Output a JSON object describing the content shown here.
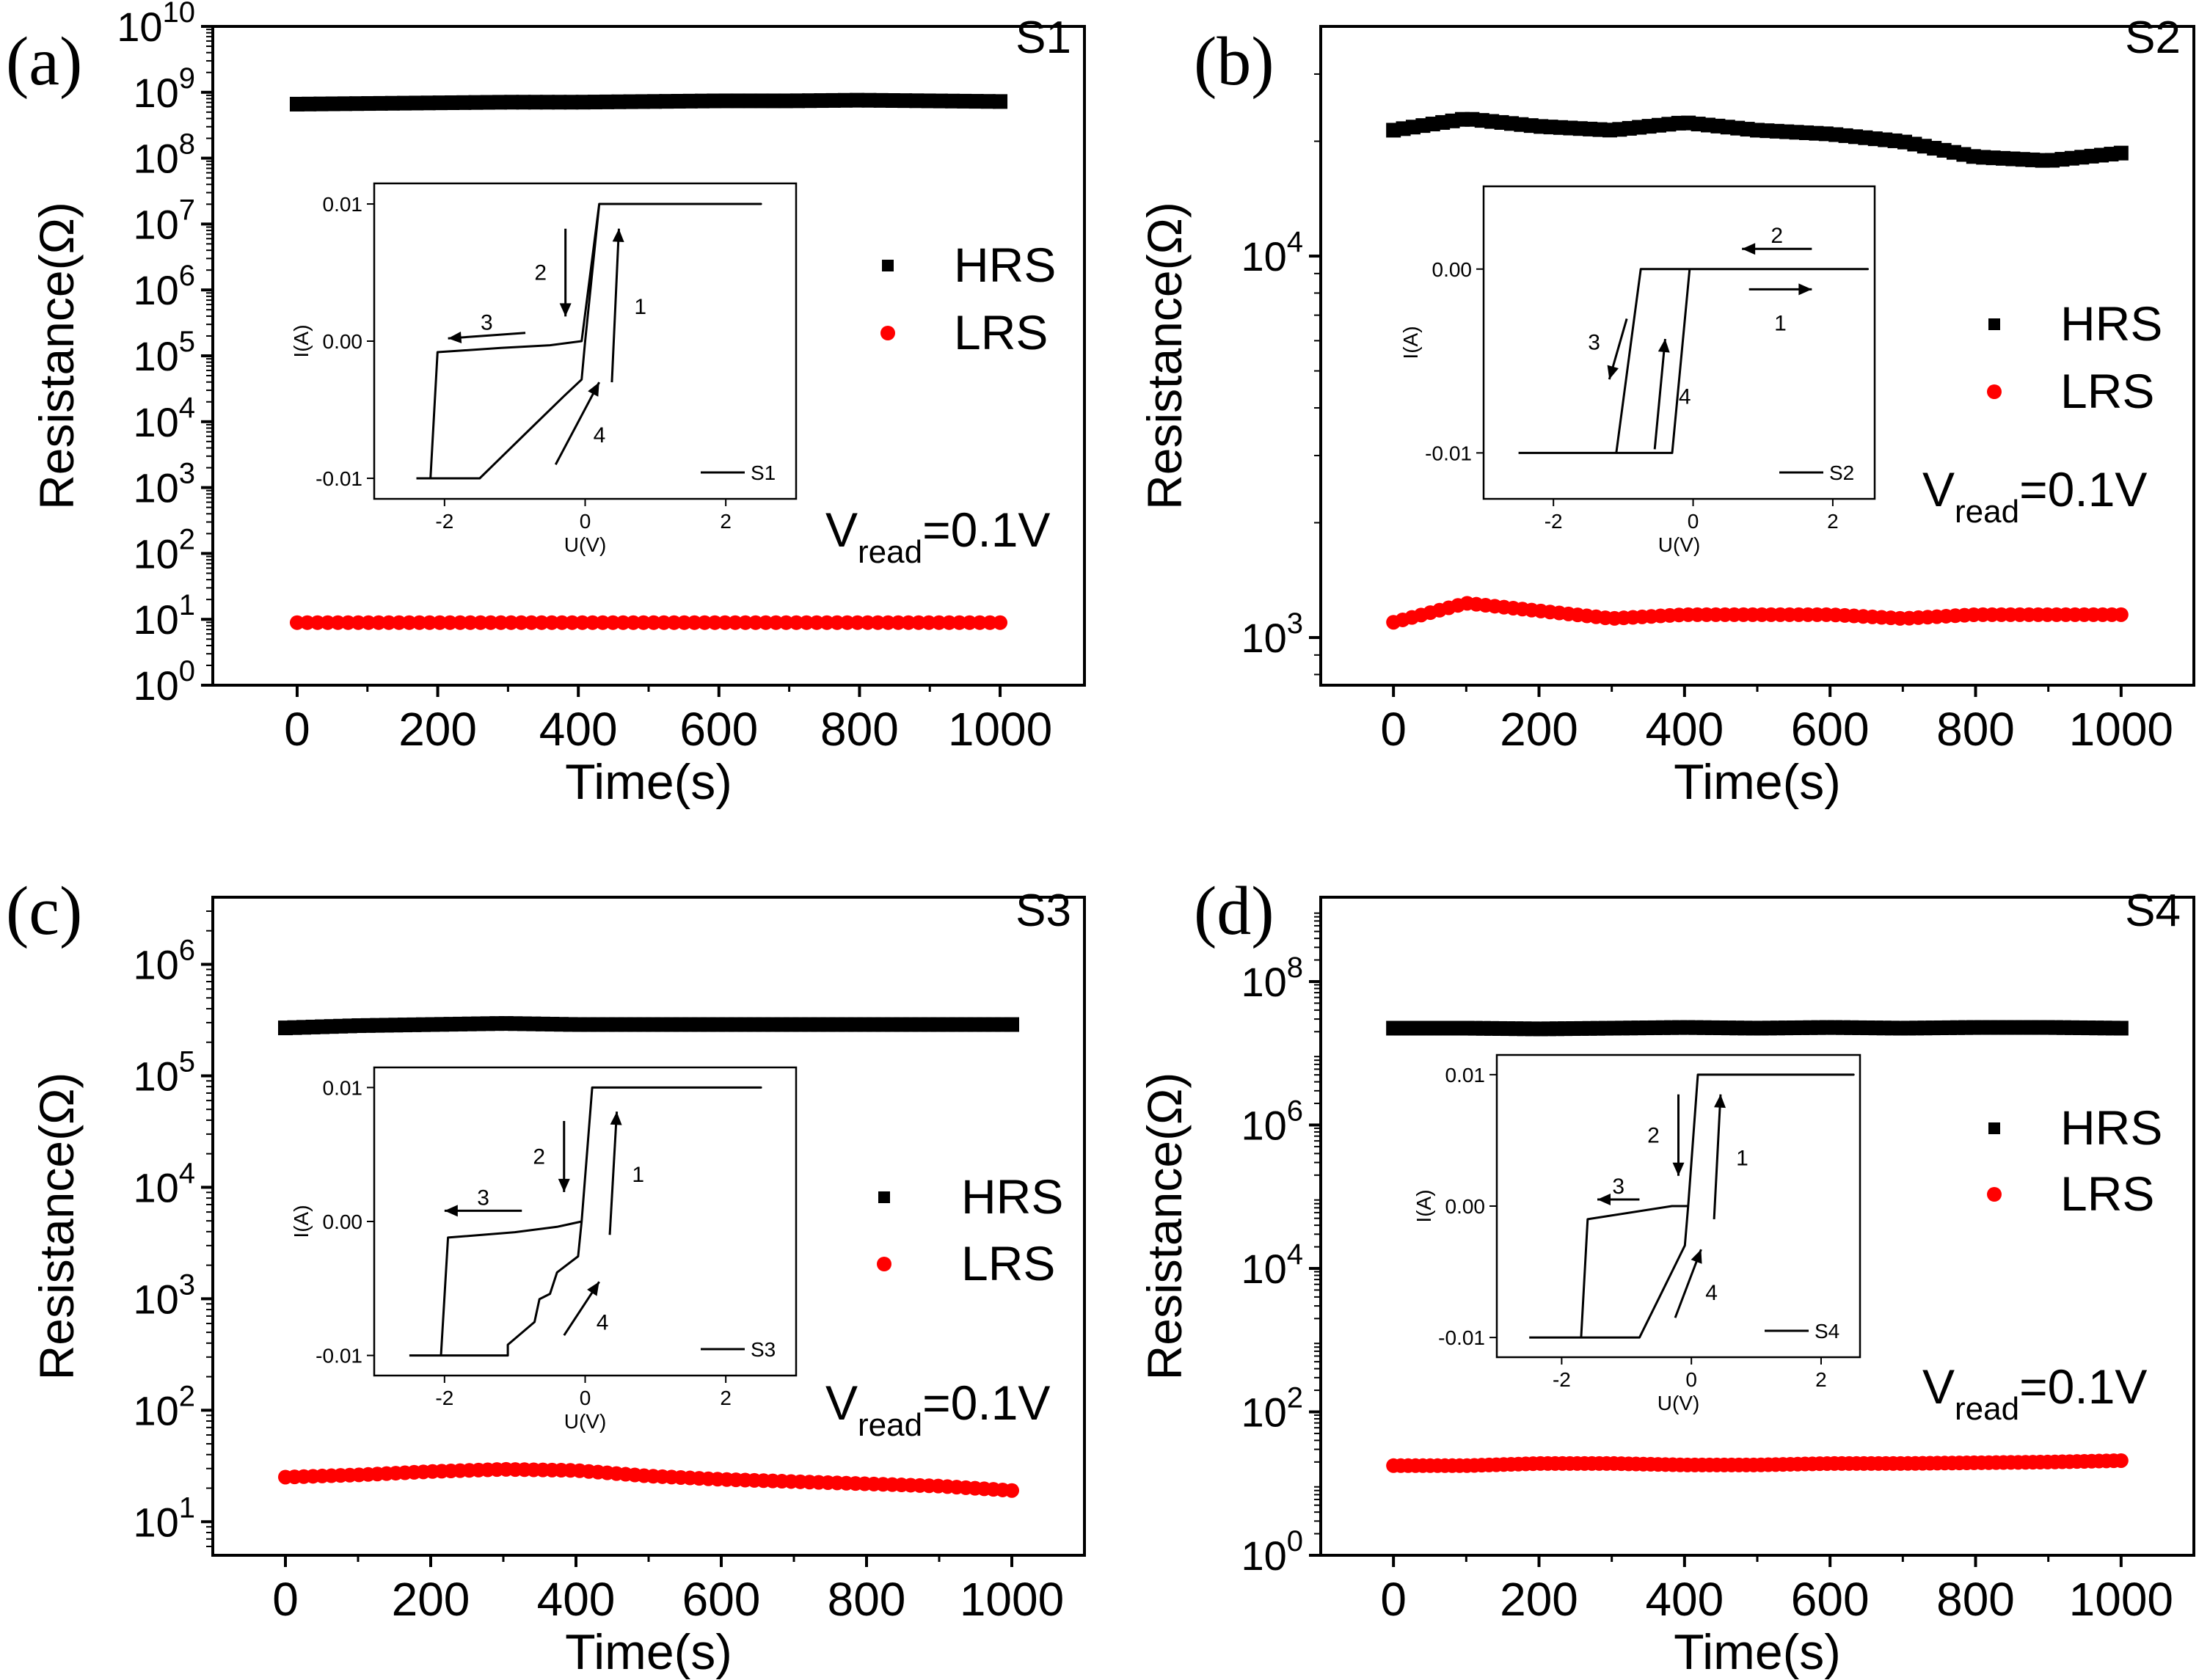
{
  "figure": {
    "xlabel": "Time(s)",
    "ylabel": "Resistance(Ω)",
    "vread": {
      "prefix": "V",
      "sub": "read",
      "suffix": "=0.1V"
    },
    "inset_xlabel": "U(V)",
    "inset_ylabel": "I(A)"
  },
  "chart_data": [
    {
      "type": "scatter",
      "panel": "(a)",
      "sample": "S1",
      "title": "",
      "xlabel": "Time(s)",
      "ylabel": "Resistance(Ω)",
      "xlim": [
        -120,
        1120
      ],
      "yscale": "log",
      "ylim": [
        1,
        10000000000
      ],
      "xticks": [
        0,
        200,
        400,
        600,
        800,
        1000
      ],
      "ytick_exponents": [
        0,
        1,
        2,
        3,
        4,
        5,
        6,
        7,
        8,
        9,
        10
      ],
      "legend_position": "right",
      "annotation": "V_read=0.1V",
      "series": [
        {
          "name": "HRS",
          "marker": "square",
          "color": "#000000",
          "t_start": 0,
          "t_end": 1000,
          "count": 60,
          "log_values": [
            8.82,
            8.83,
            8.84,
            8.85,
            8.85,
            8.86,
            8.87,
            8.87,
            8.88,
            8.87,
            8.86
          ]
        },
        {
          "name": "LRS",
          "marker": "circle",
          "color": "#ff0000",
          "t_start": 0,
          "t_end": 1000,
          "count": 70,
          "log_values": [
            0.95,
            0.95,
            0.95,
            0.95,
            0.95,
            0.95,
            0.95,
            0.95,
            0.95,
            0.95,
            0.95
          ]
        }
      ],
      "inset": {
        "type": "line",
        "legend": "S1",
        "xlabel": "U(V)",
        "ylabel": "I(A)",
        "xlim": [
          -3,
          3
        ],
        "ylim": [
          -0.0115,
          0.0115
        ],
        "xticks": [
          -2,
          0,
          2
        ],
        "yticks": [
          -0.01,
          0.0,
          0.01
        ],
        "ytick_labels": [
          "-0.01",
          "0.00",
          "0.01"
        ],
        "path": [
          [
            -2.2,
            -0.01
          ],
          [
            -2.1,
            -0.0008
          ],
          [
            -1.2,
            -0.0005
          ],
          [
            -0.5,
            -0.0003
          ],
          [
            -0.05,
            0.0
          ],
          [
            0.2,
            0.01
          ],
          [
            2.5,
            0.01
          ],
          [
            0.2,
            0.01
          ],
          [
            0.0,
            0.0
          ],
          [
            -0.05,
            -0.0028
          ],
          [
            -0.3,
            -0.004
          ],
          [
            -0.8,
            -0.0065
          ],
          [
            -1.5,
            -0.01
          ],
          [
            -2.4,
            -0.01
          ]
        ],
        "arrows": [
          {
            "label": "1",
            "from": [
              0.38,
              -0.003
            ],
            "to": [
              0.48,
              0.0082
            ]
          },
          {
            "label": "2",
            "from": [
              -0.28,
              0.0082
            ],
            "to": [
              -0.28,
              0.0018
            ]
          },
          {
            "label": "3",
            "from": [
              -0.85,
              0.0006
            ],
            "to": [
              -1.95,
              0.0002
            ]
          },
          {
            "label": "4",
            "from": [
              -0.42,
              -0.009
            ],
            "to": [
              0.2,
              -0.003
            ]
          }
        ]
      }
    },
    {
      "type": "scatter",
      "panel": "(b)",
      "sample": "S2",
      "title": "",
      "xlabel": "Time(s)",
      "ylabel": "Resistance(Ω)",
      "xlim": [
        -100,
        1100
      ],
      "yscale": "log",
      "ylim": [
        750,
        40000
      ],
      "xticks": [
        0,
        200,
        400,
        600,
        800,
        1000
      ],
      "ytick_exponents": [
        3,
        4
      ],
      "legend_position": "right",
      "annotation": "V_read=0.1V",
      "series": [
        {
          "name": "HRS",
          "marker": "square",
          "color": "#000000",
          "t_start": 0,
          "t_end": 1000,
          "count": 75,
          "log_values": [
            4.33,
            4.36,
            4.34,
            4.33,
            4.35,
            4.33,
            4.32,
            4.3,
            4.26,
            4.25,
            4.27
          ]
        },
        {
          "name": "LRS",
          "marker": "circle",
          "color": "#ff0000",
          "t_start": 0,
          "t_end": 1000,
          "count": 80,
          "log_values": [
            3.04,
            3.09,
            3.07,
            3.05,
            3.06,
            3.06,
            3.06,
            3.05,
            3.06,
            3.06,
            3.06
          ]
        }
      ],
      "inset": {
        "type": "line",
        "legend": "S2",
        "xlabel": "U(V)",
        "ylabel": "I(A)",
        "xlim": [
          -3,
          2.6
        ],
        "ylim": [
          -0.0125,
          0.0045
        ],
        "xticks": [
          -2,
          0,
          2
        ],
        "yticks": [
          -0.01,
          0.0
        ],
        "ytick_labels": [
          "-0.01",
          "0.00"
        ],
        "path": [
          [
            -2.5,
            -0.01
          ],
          [
            -1.1,
            -0.01
          ],
          [
            -0.75,
            0.0
          ],
          [
            -0.45,
            0.0
          ],
          [
            2.5,
            0.0
          ],
          [
            -0.05,
            0.0
          ],
          [
            -0.3,
            -0.01
          ],
          [
            -1.1,
            -0.01
          ]
        ],
        "arrows": [
          {
            "label": "1",
            "from": [
              0.8,
              -0.0011
            ],
            "to": [
              1.7,
              -0.0011
            ]
          },
          {
            "label": "2",
            "from": [
              1.7,
              0.0011
            ],
            "to": [
              0.7,
              0.0011
            ]
          },
          {
            "label": "3",
            "from": [
              -0.95,
              -0.0027
            ],
            "to": [
              -1.2,
              -0.006
            ]
          },
          {
            "label": "4",
            "from": [
              -0.55,
              -0.0098
            ],
            "to": [
              -0.4,
              -0.0038
            ]
          }
        ]
      }
    },
    {
      "type": "scatter",
      "panel": "(c)",
      "sample": "S3",
      "title": "",
      "xlabel": "Time(s)",
      "ylabel": "Resistance(Ω)",
      "xlim": [
        -100,
        1100
      ],
      "yscale": "log",
      "ylim": [
        5,
        4000000
      ],
      "xticks": [
        0,
        200,
        400,
        600,
        800,
        1000
      ],
      "ytick_exponents": [
        1,
        2,
        3,
        4,
        5,
        6
      ],
      "legend_position": "right",
      "annotation": "V_read=0.1V",
      "series": [
        {
          "name": "HRS",
          "marker": "square",
          "color": "#000000",
          "t_start": 0,
          "t_end": 1000,
          "count": 80,
          "log_values": [
            5.43,
            5.45,
            5.46,
            5.47,
            5.46,
            5.46,
            5.46,
            5.46,
            5.46,
            5.46,
            5.46
          ]
        },
        {
          "name": "LRS",
          "marker": "circle",
          "color": "#ff0000",
          "t_start": 0,
          "t_end": 1000,
          "count": 80,
          "log_values": [
            1.4,
            1.42,
            1.45,
            1.47,
            1.46,
            1.41,
            1.38,
            1.36,
            1.34,
            1.32,
            1.28
          ]
        }
      ],
      "inset": {
        "type": "line",
        "legend": "S3",
        "xlabel": "U(V)",
        "ylabel": "I(A)",
        "xlim": [
          -3,
          3
        ],
        "ylim": [
          -0.0115,
          0.0115
        ],
        "xticks": [
          -2,
          0,
          2
        ],
        "yticks": [
          -0.01,
          0.0,
          0.01
        ],
        "ytick_labels": [
          "-0.01",
          "0.00",
          "0.01"
        ],
        "path": [
          [
            -2.05,
            -0.01
          ],
          [
            -1.95,
            -0.0012
          ],
          [
            -1.0,
            -0.0008
          ],
          [
            -0.4,
            -0.0004
          ],
          [
            -0.05,
            0.0
          ],
          [
            0.1,
            0.01
          ],
          [
            2.5,
            0.01
          ],
          [
            0.1,
            0.01
          ],
          [
            -0.05,
            0.0
          ],
          [
            -0.1,
            -0.0026
          ],
          [
            -0.4,
            -0.0038
          ],
          [
            -0.5,
            -0.0054
          ],
          [
            -0.65,
            -0.0058
          ],
          [
            -0.72,
            -0.0075
          ],
          [
            -1.1,
            -0.0092
          ],
          [
            -1.1,
            -0.01
          ],
          [
            -2.5,
            -0.01
          ]
        ],
        "arrows": [
          {
            "label": "1",
            "from": [
              0.35,
              -0.001
            ],
            "to": [
              0.45,
              0.0082
            ]
          },
          {
            "label": "2",
            "from": [
              -0.3,
              0.0075
            ],
            "to": [
              -0.3,
              0.0022
            ]
          },
          {
            "label": "3",
            "from": [
              -0.9,
              0.0008
            ],
            "to": [
              -2.0,
              0.0008
            ]
          },
          {
            "label": "4",
            "from": [
              -0.3,
              -0.0085
            ],
            "to": [
              0.2,
              -0.0045
            ]
          }
        ]
      }
    },
    {
      "type": "scatter",
      "panel": "(d)",
      "sample": "S4",
      "title": "",
      "xlabel": "Time(s)",
      "ylabel": "Resistance(Ω)",
      "xlim": [
        -100,
        1100
      ],
      "yscale": "log",
      "ylim": [
        1,
        1500000000
      ],
      "xticks": [
        0,
        200,
        400,
        600,
        800,
        1000
      ],
      "ytick_exponents": [
        0,
        2,
        4,
        6,
        8
      ],
      "legend_position": "right",
      "annotation": "V_read=0.1V",
      "series": [
        {
          "name": "HRS",
          "marker": "square",
          "color": "#000000",
          "t_start": 0,
          "t_end": 1000,
          "count": 90,
          "log_values": [
            7.35,
            7.35,
            7.34,
            7.35,
            7.36,
            7.35,
            7.36,
            7.35,
            7.36,
            7.36,
            7.35
          ]
        },
        {
          "name": "LRS",
          "marker": "circle",
          "color": "#ff0000",
          "t_start": 0,
          "t_end": 1000,
          "count": 100,
          "log_values": [
            1.25,
            1.25,
            1.28,
            1.28,
            1.26,
            1.26,
            1.28,
            1.28,
            1.29,
            1.3,
            1.32
          ]
        }
      ],
      "inset": {
        "type": "line",
        "legend": "S4",
        "xlabel": "U(V)",
        "ylabel": "I(A)",
        "xlim": [
          -3,
          2.6
        ],
        "ylim": [
          -0.0115,
          0.0115
        ],
        "xticks": [
          -2,
          0,
          2
        ],
        "yticks": [
          -0.01,
          0.0,
          0.01
        ],
        "ytick_labels": [
          "-0.01",
          "0.00",
          "0.01"
        ],
        "path": [
          [
            -2.5,
            -0.01
          ],
          [
            -1.7,
            -0.01
          ],
          [
            -1.6,
            -0.001
          ],
          [
            -0.3,
            0.0
          ],
          [
            -0.05,
            0.0
          ],
          [
            0.1,
            0.01
          ],
          [
            2.5,
            0.01
          ],
          [
            0.1,
            0.01
          ],
          [
            -0.05,
            0.0
          ],
          [
            -0.1,
            -0.003
          ],
          [
            -0.5,
            -0.007
          ],
          [
            -0.8,
            -0.01
          ],
          [
            -2.5,
            -0.01
          ]
        ],
        "arrows": [
          {
            "label": "1",
            "from": [
              0.35,
              -0.001
            ],
            "to": [
              0.45,
              0.0085
            ]
          },
          {
            "label": "2",
            "from": [
              -0.2,
              0.0085
            ],
            "to": [
              -0.2,
              0.0023
            ]
          },
          {
            "label": "3",
            "from": [
              -0.8,
              0.0005
            ],
            "to": [
              -1.45,
              0.0005
            ]
          },
          {
            "label": "4",
            "from": [
              -0.25,
              -0.0085
            ],
            "to": [
              0.15,
              -0.0033
            ]
          }
        ]
      }
    }
  ]
}
